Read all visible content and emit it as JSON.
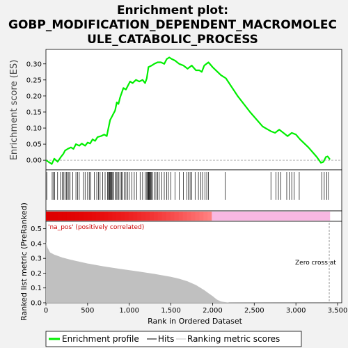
{
  "chart_data": {
    "type": "line",
    "title_lines": [
      "Enrichment plot:",
      "GOBP_MODIFICATION_DEPENDENT_MACROMOLEC",
      "ULE_CATABOLIC_PROCESS"
    ],
    "xlabel": "Rank in Ordered Dataset",
    "xlim": [
      0,
      3550
    ],
    "x_ticks": [
      0,
      500,
      1000,
      1500,
      2000,
      2500,
      3000,
      3500
    ],
    "x_tick_labels": [
      "0",
      "500",
      "1,000",
      "1,500",
      "2,000",
      "2,500",
      "3,000",
      "3,500"
    ],
    "enrichment_panel": {
      "ylabel": "Enrichment score (ES)",
      "ylim": [
        -0.03,
        0.345
      ],
      "y_ticks": [
        0.0,
        0.05,
        0.1,
        0.15,
        0.2,
        0.25,
        0.3
      ],
      "y_tick_labels": [
        "0.00",
        "0.05",
        "0.10",
        "0.15",
        "0.20",
        "0.25",
        "0.30"
      ],
      "series": [
        {
          "name": "Enrichment profile",
          "color": "#00ee00",
          "points": [
            [
              0,
              0.0
            ],
            [
              30,
              -0.005
            ],
            [
              70,
              -0.012
            ],
            [
              100,
              0.005
            ],
            [
              140,
              -0.005
            ],
            [
              180,
              0.01
            ],
            [
              210,
              0.02
            ],
            [
              230,
              0.03
            ],
            [
              260,
              0.035
            ],
            [
              300,
              0.04
            ],
            [
              330,
              0.035
            ],
            [
              360,
              0.05
            ],
            [
              400,
              0.045
            ],
            [
              430,
              0.052
            ],
            [
              470,
              0.045
            ],
            [
              500,
              0.055
            ],
            [
              530,
              0.052
            ],
            [
              560,
              0.065
            ],
            [
              590,
              0.06
            ],
            [
              620,
              0.072
            ],
            [
              660,
              0.075
            ],
            [
              700,
              0.08
            ],
            [
              730,
              0.075
            ],
            [
              750,
              0.1
            ],
            [
              770,
              0.125
            ],
            [
              800,
              0.14
            ],
            [
              830,
              0.155
            ],
            [
              850,
              0.18
            ],
            [
              870,
              0.175
            ],
            [
              890,
              0.195
            ],
            [
              910,
              0.21
            ],
            [
              930,
              0.225
            ],
            [
              960,
              0.22
            ],
            [
              990,
              0.235
            ],
            [
              1010,
              0.245
            ],
            [
              1040,
              0.24
            ],
            [
              1080,
              0.25
            ],
            [
              1120,
              0.245
            ],
            [
              1160,
              0.25
            ],
            [
              1190,
              0.24
            ],
            [
              1210,
              0.255
            ],
            [
              1230,
              0.29
            ],
            [
              1270,
              0.295
            ],
            [
              1300,
              0.3
            ],
            [
              1340,
              0.305
            ],
            [
              1380,
              0.305
            ],
            [
              1420,
              0.3
            ],
            [
              1450,
              0.315
            ],
            [
              1480,
              0.32
            ],
            [
              1510,
              0.315
            ],
            [
              1550,
              0.31
            ],
            [
              1600,
              0.3
            ],
            [
              1650,
              0.295
            ],
            [
              1700,
              0.285
            ],
            [
              1750,
              0.295
            ],
            [
              1800,
              0.28
            ],
            [
              1840,
              0.28
            ],
            [
              1870,
              0.275
            ],
            [
              1900,
              0.295
            ],
            [
              1950,
              0.305
            ],
            [
              2000,
              0.29
            ],
            [
              2100,
              0.265
            ],
            [
              2160,
              0.255
            ],
            [
              2300,
              0.2
            ],
            [
              2450,
              0.15
            ],
            [
              2600,
              0.105
            ],
            [
              2700,
              0.09
            ],
            [
              2750,
              0.085
            ],
            [
              2800,
              0.095
            ],
            [
              2850,
              0.085
            ],
            [
              2900,
              0.075
            ],
            [
              2950,
              0.085
            ],
            [
              3000,
              0.08
            ],
            [
              3050,
              0.065
            ],
            [
              3150,
              0.04
            ],
            [
              3250,
              0.01
            ],
            [
              3300,
              -0.008
            ],
            [
              3330,
              -0.005
            ],
            [
              3360,
              0.01
            ],
            [
              3380,
              0.012
            ],
            [
              3410,
              0.002
            ]
          ]
        }
      ]
    },
    "hits": {
      "name": "Hits",
      "color": "#000000",
      "positions": [
        10,
        75,
        90,
        105,
        140,
        175,
        195,
        215,
        230,
        245,
        260,
        275,
        290,
        320,
        360,
        380,
        400,
        450,
        470,
        500,
        520,
        540,
        580,
        610,
        630,
        650,
        680,
        710,
        740,
        752,
        758,
        765,
        772,
        780,
        790,
        800,
        815,
        830,
        845,
        860,
        875,
        890,
        905,
        920,
        940,
        960,
        980,
        1000,
        1030,
        1060,
        1090,
        1130,
        1160,
        1190,
        1210,
        1220,
        1228,
        1235,
        1242,
        1250,
        1258,
        1265,
        1280,
        1300,
        1320,
        1340,
        1360,
        1390,
        1420,
        1450,
        1470,
        1500,
        1550,
        1600,
        1650,
        1690,
        1710,
        1730,
        1750,
        1790,
        1830,
        1860,
        1880,
        1910,
        1930,
        1950,
        2150,
        2700,
        2760,
        2790,
        2820,
        2890,
        2920,
        2950,
        2980,
        3040,
        3310,
        3340,
        3370,
        3390
      ]
    },
    "ranking_panel": {
      "ylabel": "Ranked list metric (PreRanked)",
      "ylim": [
        0,
        0.55
      ],
      "y_ticks": [
        0.0,
        0.1,
        0.2,
        0.3,
        0.4,
        0.5
      ],
      "y_tick_labels": [
        "0.0",
        "0.1",
        "0.2",
        "0.3",
        "0.4",
        "0.5"
      ],
      "series": [
        {
          "name": "Ranking metric scores",
          "color": "#c0c0c0",
          "points": [
            [
              0,
              0.41
            ],
            [
              20,
              0.37
            ],
            [
              50,
              0.34
            ],
            [
              100,
              0.325
            ],
            [
              200,
              0.305
            ],
            [
              300,
              0.29
            ],
            [
              500,
              0.265
            ],
            [
              700,
              0.245
            ],
            [
              900,
              0.228
            ],
            [
              1100,
              0.212
            ],
            [
              1300,
              0.195
            ],
            [
              1500,
              0.175
            ],
            [
              1600,
              0.162
            ],
            [
              1700,
              0.145
            ],
            [
              1800,
              0.12
            ],
            [
              1900,
              0.085
            ],
            [
              1950,
              0.065
            ],
            [
              2000,
              0.045
            ],
            [
              2050,
              0.022
            ],
            [
              2100,
              0.008
            ],
            [
              2200,
              0.001
            ],
            [
              3410,
              0.0
            ]
          ]
        }
      ],
      "positive_label": "'na_pos' (positively correlated)",
      "zero_cross_label": "Zero cross at",
      "zero_cross_rank": 3400
    },
    "correlation_bar": {
      "positive_end": 1990,
      "end": 3410,
      "pos_dark": "#dd0000",
      "pos_light": "#ff8080",
      "neg_color": "#f9b8e2"
    },
    "legend": {
      "position": "bottom",
      "entries": [
        {
          "label": "Enrichment profile",
          "color": "#00ee00"
        },
        {
          "label": "Hits",
          "color": "#000000"
        },
        {
          "label": "Ranking metric scores",
          "color": "#c0c0c0"
        }
      ]
    }
  }
}
